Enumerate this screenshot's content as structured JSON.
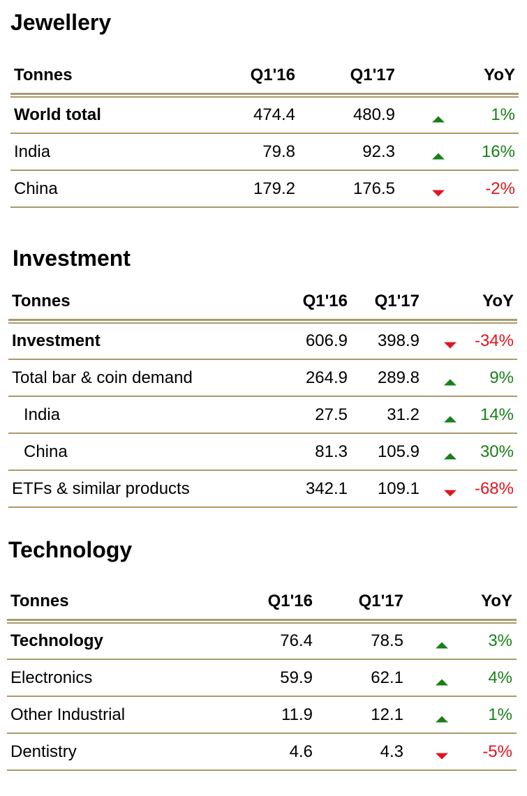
{
  "sections": [
    {
      "title": "Jewellery",
      "headers": [
        "Tonnes",
        "Q1'16",
        "Q1'17",
        "YoY"
      ],
      "rows": [
        {
          "label": "World total",
          "q116": "474.4",
          "q117": "480.9",
          "trend": "up",
          "yoy": "1%",
          "bold": true
        },
        {
          "label": "India",
          "q116": "79.8",
          "q117": "92.3",
          "trend": "up",
          "yoy": "16%"
        },
        {
          "label": "China",
          "q116": "179.2",
          "q117": "176.5",
          "trend": "down",
          "yoy": "-2%"
        }
      ]
    },
    {
      "title": "Investment",
      "headers": [
        "Tonnes",
        "Q1'16",
        "Q1'17",
        "YoY"
      ],
      "rows": [
        {
          "label": "Investment",
          "q116": "606.9",
          "q117": "398.9",
          "trend": "down",
          "yoy": "-34%",
          "bold": true
        },
        {
          "label": "Total bar & coin demand",
          "q116": "264.9",
          "q117": "289.8",
          "trend": "up",
          "yoy": "9%"
        },
        {
          "label": "India",
          "q116": "27.5",
          "q117": "31.2",
          "trend": "up",
          "yoy": "14%",
          "indent": true
        },
        {
          "label": "China",
          "q116": "81.3",
          "q117": "105.9",
          "trend": "up",
          "yoy": "30%",
          "indent": true
        },
        {
          "label": "ETFs & similar products",
          "q116": "342.1",
          "q117": "109.1",
          "trend": "down",
          "yoy": "-68%"
        }
      ]
    },
    {
      "title": "Technology",
      "headers": [
        "Tonnes",
        "Q1'16",
        "Q1'17",
        "YoY"
      ],
      "rows": [
        {
          "label": "Technology",
          "q116": "76.4",
          "q117": "78.5",
          "trend": "up",
          "yoy": "3%",
          "bold": true
        },
        {
          "label": "Electronics",
          "q116": "59.9",
          "q117": "62.1",
          "trend": "up",
          "yoy": "4%"
        },
        {
          "label": "Other Industrial",
          "q116": "11.9",
          "q117": "12.1",
          "trend": "up",
          "yoy": "1%"
        },
        {
          "label": "Dentistry",
          "q116": "4.6",
          "q117": "4.3",
          "trend": "down",
          "yoy": "-5%"
        }
      ]
    }
  ]
}
